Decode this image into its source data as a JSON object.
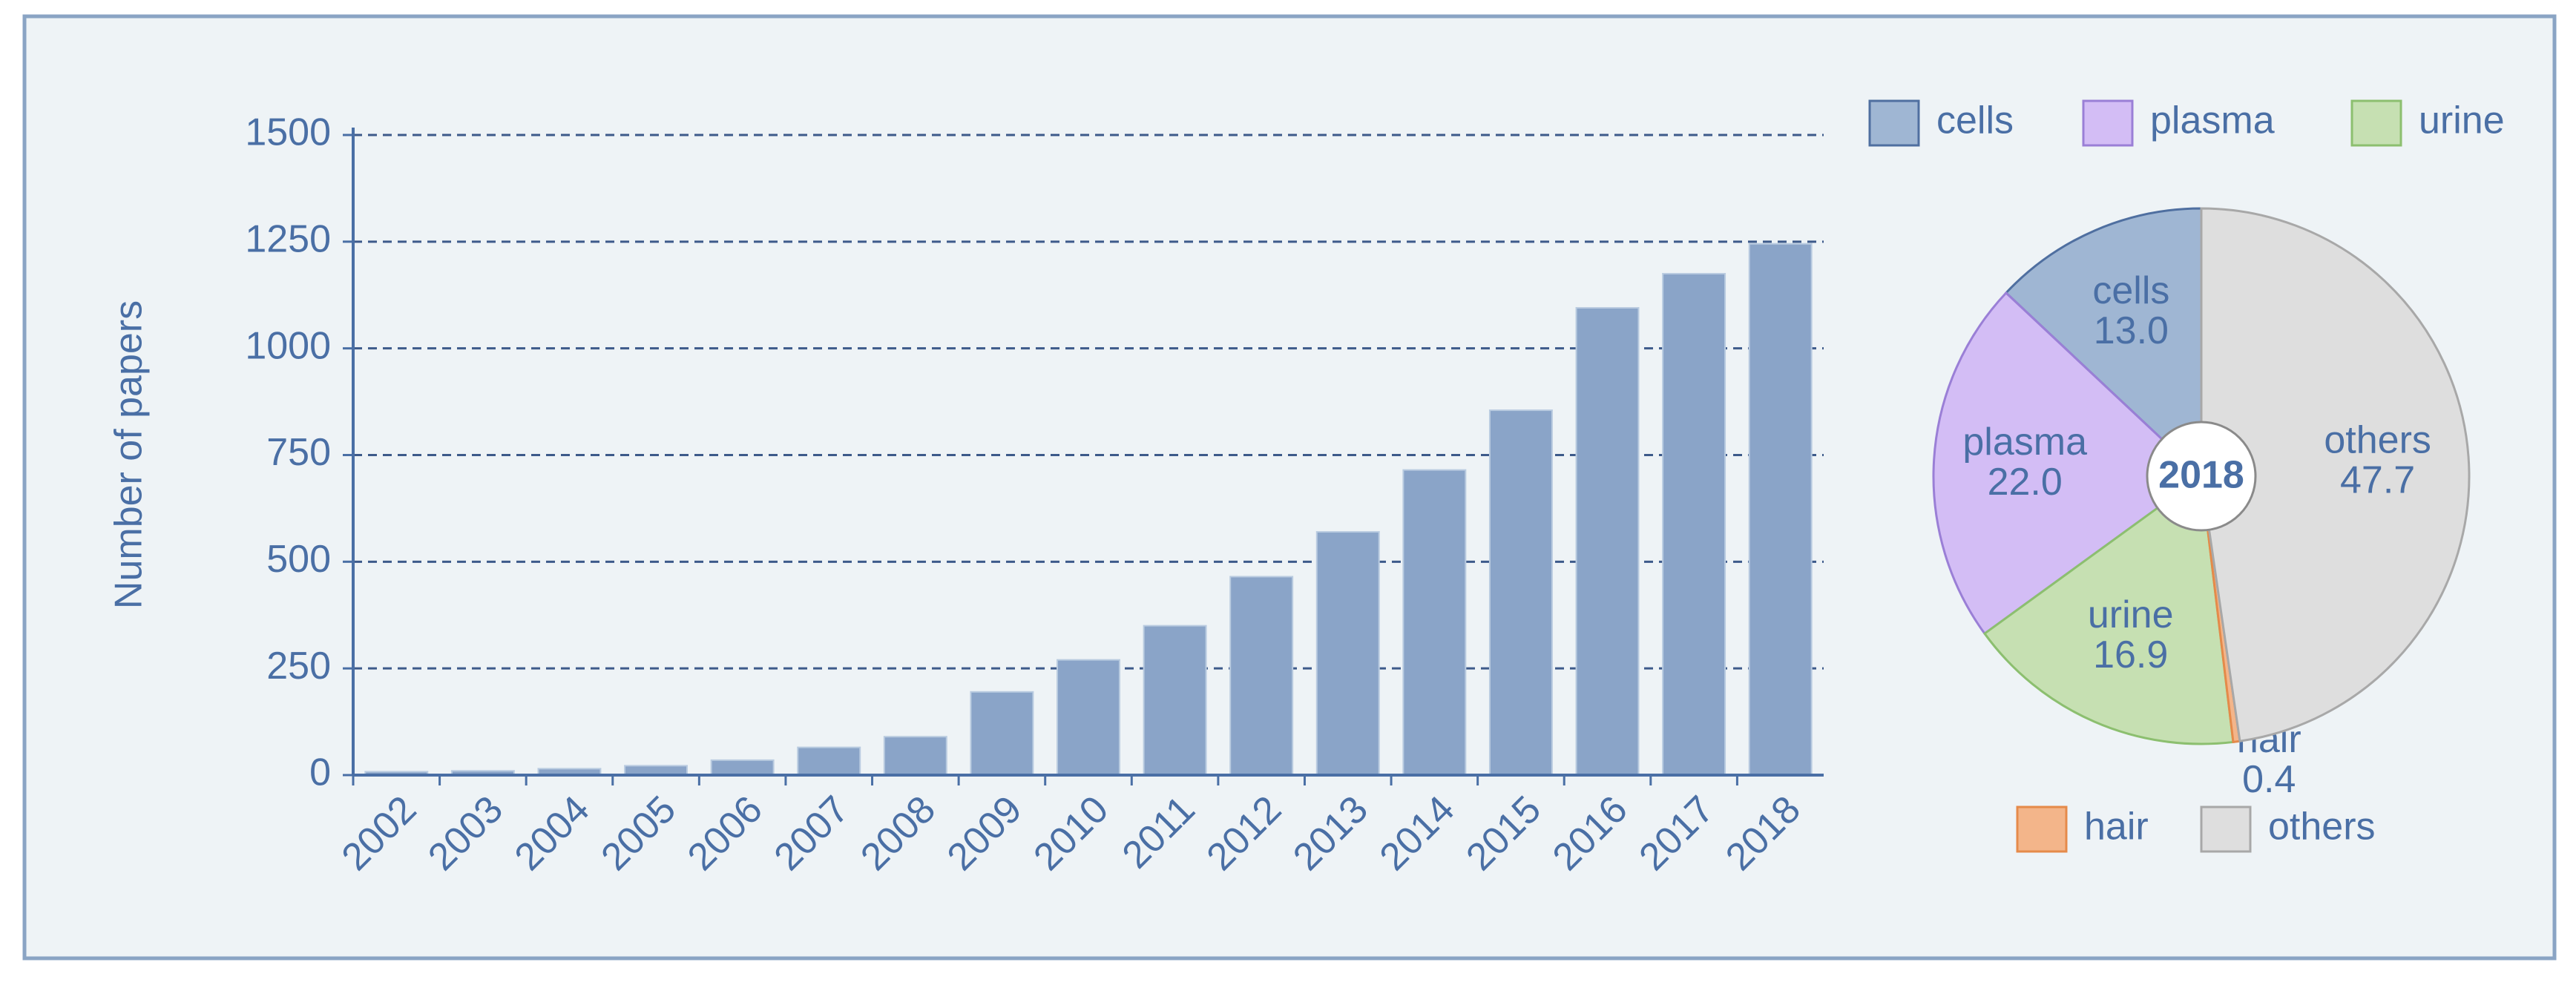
{
  "chart_data": [
    {
      "type": "bar",
      "y_label": "Number of papers",
      "categories": [
        "2002",
        "2003",
        "2004",
        "2005",
        "2006",
        "2007",
        "2008",
        "2009",
        "2010",
        "2011",
        "2012",
        "2013",
        "2014",
        "2015",
        "2016",
        "2017",
        "2018"
      ],
      "values": [
        8,
        10,
        15,
        22,
        35,
        65,
        90,
        195,
        270,
        350,
        465,
        570,
        715,
        855,
        1095,
        1175,
        1245
      ],
      "color": "#8aa4c8",
      "ylim": [
        0,
        1500
      ],
      "yticks": [
        0,
        250,
        500,
        750,
        1000,
        1250,
        1500
      ],
      "grid": true
    },
    {
      "type": "pie",
      "center_label": "2018",
      "categories": [
        "cells",
        "plasma",
        "urine",
        "hair",
        "others"
      ],
      "values": [
        13.0,
        22.0,
        16.9,
        0.4,
        47.7
      ],
      "value_labels": [
        "13.0",
        "22.0",
        "16.9",
        "0.4",
        "47.7"
      ],
      "colors": [
        "#9fb6d3",
        "#d3bdf5",
        "#c6e0b2",
        "#f3b58a",
        "#dedede"
      ],
      "edge_colors": [
        "#4f6fa0",
        "#9a7fd6",
        "#8cbf6f",
        "#e58a4a",
        "#a8a8a8"
      ]
    }
  ]
}
